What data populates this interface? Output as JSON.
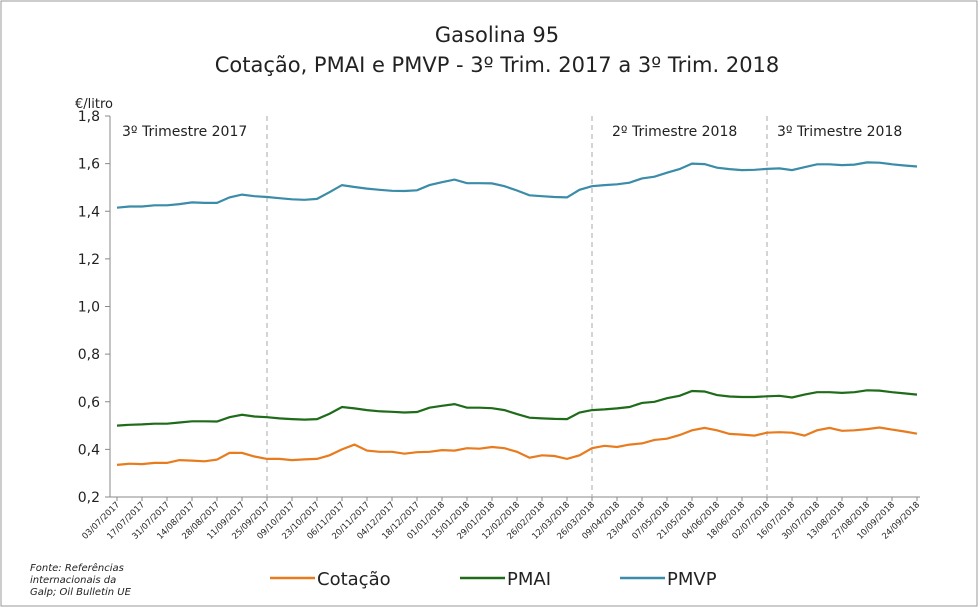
{
  "chart_data": {
    "type": "line",
    "title": "Gasolina 95",
    "subtitle": "Cotação, PMAI e PMVP - 3º Trim. 2017 a 3º Trim. 2018",
    "y_label": "€/litro",
    "source": "Fonte: Referências internacionais da Galp; Oil Bulletin UE",
    "annotations": [
      "3º Trimestre 2017",
      "2º Trimestre 2018",
      "3º Trimestre 2018"
    ],
    "categories": [
      "03/07/2017",
      null,
      "17/07/2017",
      null,
      "31/07/2017",
      null,
      "14/08/2017",
      null,
      "28/08/2017",
      null,
      "11/09/2017",
      null,
      "25/09/2017",
      null,
      "09/10/2017",
      null,
      "23/10/2017",
      null,
      "06/11/2017",
      null,
      "20/11/2017",
      null,
      "04/12/2017",
      null,
      "18/12/2017",
      null,
      "01/01/2018",
      null,
      "15/01/2018",
      null,
      "29/01/2018",
      null,
      "12/02/2018",
      null,
      "26/02/2018",
      null,
      "12/03/2018",
      null,
      "26/03/2018",
      null,
      "09/04/2018",
      null,
      "23/04/2018",
      null,
      "07/05/2018",
      null,
      "21/05/2018",
      null,
      "04/06/2018",
      null,
      "18/06/2018",
      null,
      "02/07/2018",
      null,
      "16/07/2018",
      null,
      "30/07/2018",
      null,
      "13/08/2018",
      null,
      "27/08/2018",
      null,
      "10/09/2018",
      null,
      "24/09/2018"
    ],
    "series": [
      {
        "name": "Cotação",
        "color": "#e87b1e",
        "values": [
          0.335,
          0.34,
          0.338,
          0.343,
          0.343,
          0.355,
          0.353,
          0.35,
          0.357,
          0.385,
          0.385,
          0.37,
          0.36,
          0.36,
          0.355,
          0.358,
          0.36,
          0.375,
          0.4,
          0.42,
          0.395,
          0.39,
          0.39,
          0.382,
          0.388,
          0.39,
          0.397,
          0.395,
          0.405,
          0.403,
          0.41,
          0.405,
          0.39,
          0.365,
          0.375,
          0.372,
          0.36,
          0.375,
          0.405,
          0.415,
          0.41,
          0.42,
          0.425,
          0.44,
          0.445,
          0.46,
          0.48,
          0.49,
          0.48,
          0.465,
          0.462,
          0.458,
          0.47,
          0.472,
          0.47,
          0.458,
          0.48,
          0.49,
          0.478,
          0.48,
          0.485,
          0.492,
          0.483,
          0.475,
          0.466
        ]
      },
      {
        "name": "PMAI",
        "color": "#1e6b1a",
        "values": [
          0.5,
          0.503,
          0.505,
          0.508,
          0.508,
          0.513,
          0.518,
          0.518,
          0.517,
          0.535,
          0.545,
          0.538,
          0.535,
          0.53,
          0.527,
          0.525,
          0.527,
          0.55,
          0.578,
          0.572,
          0.565,
          0.56,
          0.558,
          0.555,
          0.557,
          0.575,
          0.583,
          0.59,
          0.575,
          0.575,
          0.573,
          0.565,
          0.548,
          0.533,
          0.53,
          0.528,
          0.527,
          0.555,
          0.565,
          0.568,
          0.572,
          0.578,
          0.595,
          0.6,
          0.615,
          0.625,
          0.645,
          0.643,
          0.628,
          0.622,
          0.62,
          0.62,
          0.623,
          0.625,
          0.618,
          0.63,
          0.64,
          0.64,
          0.637,
          0.64,
          0.648,
          0.647,
          0.64,
          0.635,
          0.63
        ]
      },
      {
        "name": "PMVP",
        "color": "#3a8ca8",
        "values": [
          1.415,
          1.42,
          1.42,
          1.425,
          1.425,
          1.43,
          1.437,
          1.435,
          1.435,
          1.458,
          1.47,
          1.463,
          1.46,
          1.455,
          1.45,
          1.448,
          1.452,
          1.48,
          1.51,
          1.502,
          1.495,
          1.49,
          1.486,
          1.485,
          1.488,
          1.51,
          1.522,
          1.533,
          1.518,
          1.518,
          1.517,
          1.505,
          1.487,
          1.467,
          1.463,
          1.46,
          1.458,
          1.49,
          1.505,
          1.51,
          1.513,
          1.52,
          1.538,
          1.545,
          1.562,
          1.577,
          1.6,
          1.598,
          1.583,
          1.577,
          1.573,
          1.574,
          1.578,
          1.58,
          1.573,
          1.585,
          1.597,
          1.597,
          1.594,
          1.596,
          1.605,
          1.604,
          1.597,
          1.592,
          1.588
        ]
      }
    ],
    "ylim": [
      0.2,
      1.8
    ],
    "yticks": [
      {
        "value": 0.2,
        "label": "0,2"
      },
      {
        "value": 0.4,
        "label": "0,4"
      },
      {
        "value": 0.6,
        "label": "0,6"
      },
      {
        "value": 0.8,
        "label": "0,8"
      },
      {
        "value": 1.0,
        "label": "1,0"
      },
      {
        "value": 1.2,
        "label": "1,2"
      },
      {
        "value": 1.4,
        "label": "1,4"
      },
      {
        "value": 1.6,
        "label": "1,6"
      },
      {
        "value": 1.8,
        "label": "1,8"
      }
    ],
    "legend": "bottom"
  }
}
